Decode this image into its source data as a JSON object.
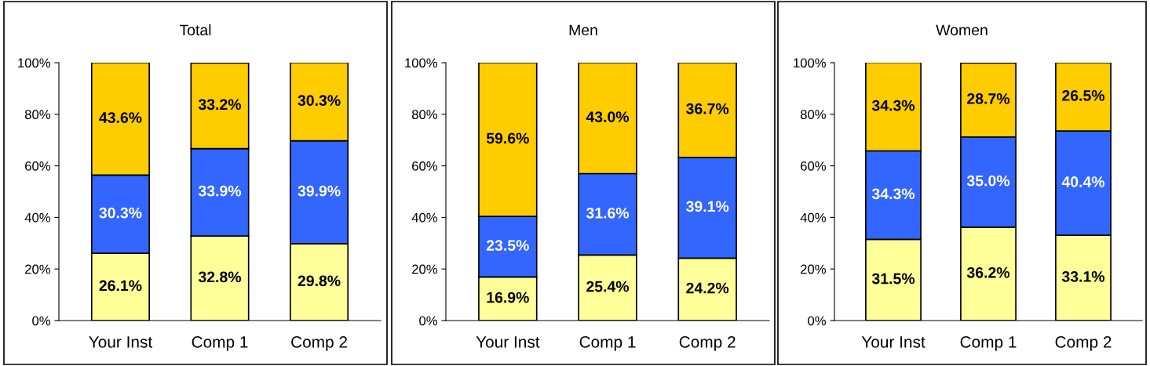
{
  "chart_data": [
    {
      "type": "bar",
      "title": "Total",
      "stacked": true,
      "categories": [
        "Your Inst",
        "Comp 1",
        "Comp 2"
      ],
      "ylim": [
        0,
        100
      ],
      "yticks": [
        {
          "value": 0,
          "label": "0%"
        },
        {
          "value": 20,
          "label": "20%"
        },
        {
          "value": 40,
          "label": "40%"
        },
        {
          "value": 60,
          "label": "60%"
        },
        {
          "value": 80,
          "label": "80%"
        },
        {
          "value": 100,
          "label": "100%"
        }
      ],
      "grid": false,
      "legend": false,
      "series": [
        {
          "color": "#ffff99",
          "values": [
            26.1,
            32.8,
            29.8
          ],
          "value_labels": [
            "26.1%",
            "32.8%",
            "29.8%"
          ]
        },
        {
          "color": "#3366ff",
          "values": [
            30.3,
            33.9,
            39.9
          ],
          "value_labels": [
            "30.3%",
            "33.9%",
            "39.9%"
          ]
        },
        {
          "color": "#ffcc00",
          "values": [
            43.6,
            33.2,
            30.3
          ],
          "value_labels": [
            "43.6%",
            "33.2%",
            "30.3%"
          ]
        }
      ]
    },
    {
      "type": "bar",
      "title": "Men",
      "stacked": true,
      "categories": [
        "Your Inst",
        "Comp 1",
        "Comp 2"
      ],
      "ylim": [
        0,
        100
      ],
      "yticks": [
        {
          "value": 0,
          "label": "0%"
        },
        {
          "value": 20,
          "label": "20%"
        },
        {
          "value": 40,
          "label": "40%"
        },
        {
          "value": 60,
          "label": "60%"
        },
        {
          "value": 80,
          "label": "80%"
        },
        {
          "value": 100,
          "label": "100%"
        }
      ],
      "grid": false,
      "legend": false,
      "series": [
        {
          "color": "#ffff99",
          "values": [
            16.9,
            25.4,
            24.2
          ],
          "value_labels": [
            "16.9%",
            "25.4%",
            "24.2%"
          ]
        },
        {
          "color": "#3366ff",
          "values": [
            23.5,
            31.6,
            39.1
          ],
          "value_labels": [
            "23.5%",
            "31.6%",
            "39.1%"
          ]
        },
        {
          "color": "#ffcc00",
          "values": [
            59.6,
            43.0,
            36.7
          ],
          "value_labels": [
            "59.6%",
            "43.0%",
            "36.7%"
          ]
        }
      ]
    },
    {
      "type": "bar",
      "title": "Women",
      "stacked": true,
      "categories": [
        "Your Inst",
        "Comp 1",
        "Comp 2"
      ],
      "ylim": [
        0,
        100
      ],
      "yticks": [
        {
          "value": 0,
          "label": "0%"
        },
        {
          "value": 20,
          "label": "20%"
        },
        {
          "value": 40,
          "label": "40%"
        },
        {
          "value": 60,
          "label": "60%"
        },
        {
          "value": 80,
          "label": "80%"
        },
        {
          "value": 100,
          "label": "100%"
        }
      ],
      "grid": false,
      "legend": false,
      "series": [
        {
          "color": "#ffff99",
          "values": [
            31.5,
            36.2,
            33.1
          ],
          "value_labels": [
            "31.5%",
            "36.2%",
            "33.1%"
          ]
        },
        {
          "color": "#3366ff",
          "values": [
            34.3,
            35.0,
            40.4
          ],
          "value_labels": [
            "34.3%",
            "35.0%",
            "40.4%"
          ]
        },
        {
          "color": "#ffcc00",
          "values": [
            34.3,
            28.7,
            26.5
          ],
          "value_labels": [
            "34.3%",
            "28.7%",
            "26.5%"
          ]
        }
      ]
    }
  ]
}
